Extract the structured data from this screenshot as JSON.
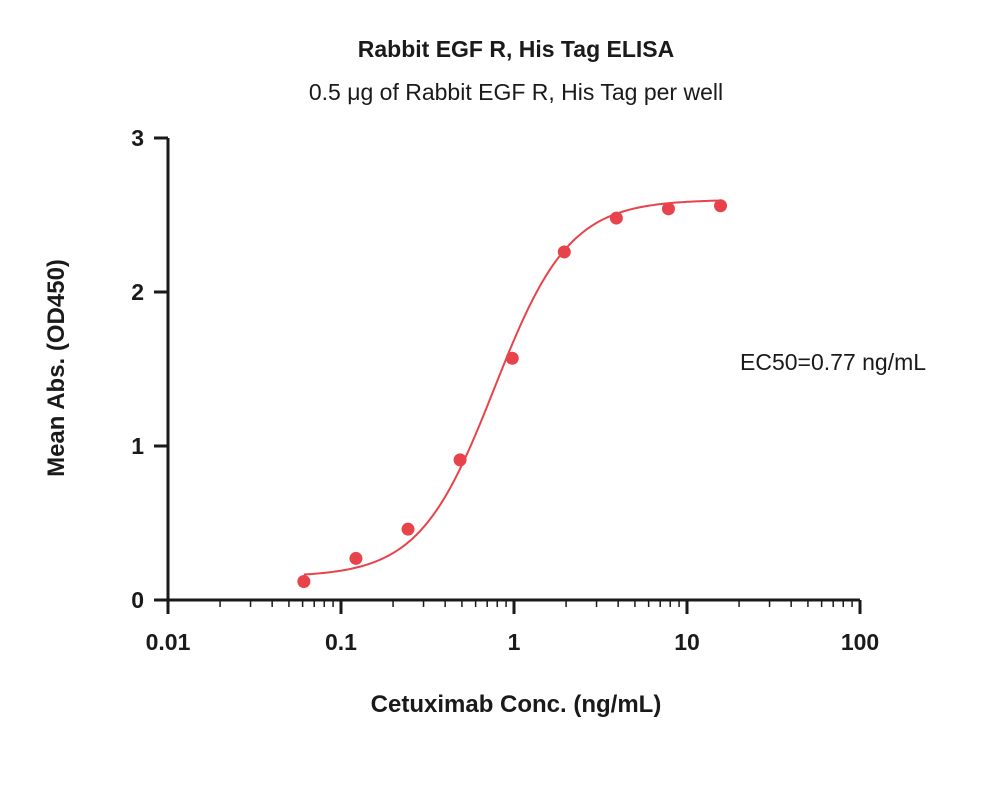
{
  "chart_data": {
    "type": "scatter",
    "title": "Rabbit EGF R, His Tag ELISA",
    "subtitle": "0.5 μg of Rabbit EGF R, His Tag per well",
    "xlabel": "Cetuximab Conc. (ng/mL)",
    "ylabel": "Mean Abs. (OD450)",
    "x_scale": "log",
    "xlim": [
      0.01,
      100
    ],
    "ylim": [
      0,
      3
    ],
    "x_ticks": [
      "0.01",
      "0.1",
      "1",
      "10",
      "100"
    ],
    "y_ticks": [
      "0",
      "1",
      "2",
      "3"
    ],
    "grid": false,
    "annotation": "EC50=0.77 ng/mL",
    "color": "#e8434a",
    "series": [
      {
        "x": [
          0.061,
          0.122,
          0.244,
          0.488,
          0.977,
          1.953,
          3.906,
          7.813,
          15.625
        ],
        "y": [
          0.12,
          0.27,
          0.46,
          0.91,
          1.57,
          2.26,
          2.48,
          2.54,
          2.56
        ]
      }
    ],
    "fit": {
      "type": "4PL",
      "bottom": 0.15,
      "top": 2.6,
      "ec50": 0.77,
      "hill": 2.0
    }
  }
}
